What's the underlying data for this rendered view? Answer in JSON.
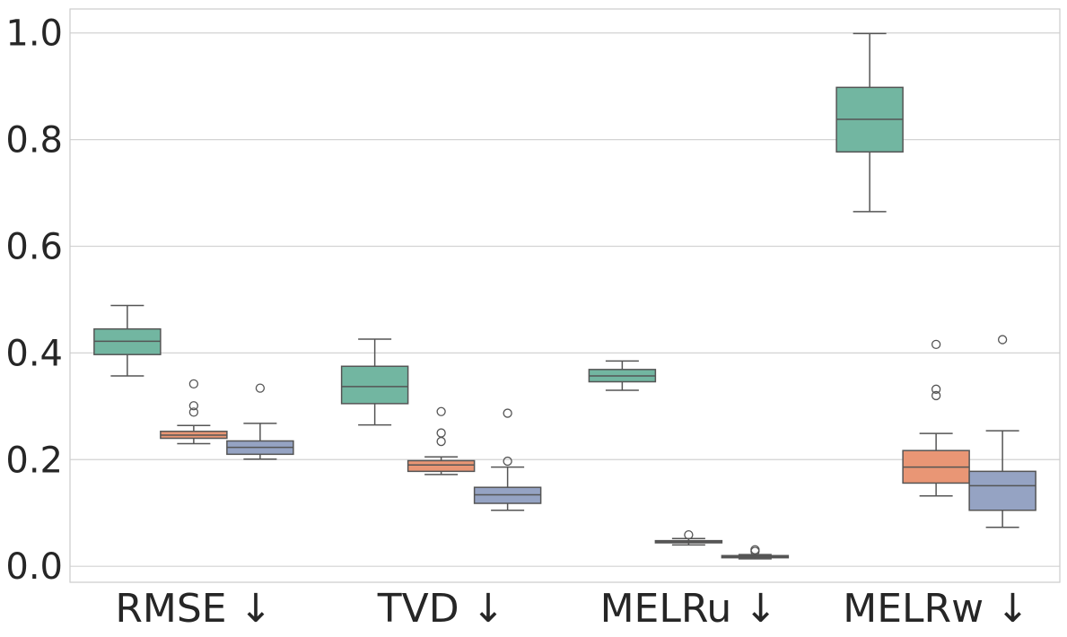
{
  "chart_data": {
    "type": "box",
    "categories": [
      "RMSE ↓",
      "TVD ↓",
      "MELRu ↓",
      "MELRw ↓"
    ],
    "ylim": [
      -0.03,
      1.045
    ],
    "yticks": [
      0.0,
      0.2,
      0.4,
      0.6,
      0.8,
      1.0
    ],
    "ytick_labels": [
      "0.0",
      "0.2",
      "0.4",
      "0.6",
      "0.8",
      "1.0"
    ],
    "grid": true,
    "legend": "none",
    "colors": [
      "#72b6a1",
      "#e99675",
      "#95a3c3"
    ],
    "series": [
      {
        "boxes": [
          {
            "q1": 0.397,
            "median": 0.422,
            "q3": 0.445,
            "whislo": 0.357,
            "whishi": 0.489,
            "fliers": []
          },
          {
            "q1": 0.305,
            "median": 0.337,
            "q3": 0.375,
            "whislo": 0.265,
            "whishi": 0.426,
            "fliers": []
          },
          {
            "q1": 0.346,
            "median": 0.357,
            "q3": 0.369,
            "whislo": 0.33,
            "whishi": 0.385,
            "fliers": []
          },
          {
            "q1": 0.777,
            "median": 0.838,
            "q3": 0.898,
            "whislo": 0.665,
            "whishi": 0.999,
            "fliers": []
          }
        ]
      },
      {
        "boxes": [
          {
            "q1": 0.24,
            "median": 0.246,
            "q3": 0.253,
            "whislo": 0.23,
            "whishi": 0.264,
            "fliers": [
              0.289,
              0.301,
              0.342
            ]
          },
          {
            "q1": 0.178,
            "median": 0.19,
            "q3": 0.198,
            "whislo": 0.172,
            "whishi": 0.205,
            "fliers": [
              0.234,
              0.25,
              0.29
            ]
          },
          {
            "q1": 0.044,
            "median": 0.046,
            "q3": 0.048,
            "whislo": 0.04,
            "whishi": 0.052,
            "fliers": [
              0.059
            ]
          },
          {
            "q1": 0.156,
            "median": 0.186,
            "q3": 0.217,
            "whislo": 0.132,
            "whishi": 0.249,
            "fliers": [
              0.32,
              0.332,
              0.416
            ]
          }
        ]
      },
      {
        "boxes": [
          {
            "q1": 0.21,
            "median": 0.223,
            "q3": 0.235,
            "whislo": 0.201,
            "whishi": 0.268,
            "fliers": [
              0.334
            ]
          },
          {
            "q1": 0.118,
            "median": 0.134,
            "q3": 0.148,
            "whislo": 0.105,
            "whishi": 0.186,
            "fliers": [
              0.197,
              0.287
            ]
          },
          {
            "q1": 0.016,
            "median": 0.018,
            "q3": 0.02,
            "whislo": 0.014,
            "whishi": 0.022,
            "fliers": [
              0.028,
              0.031
            ]
          },
          {
            "q1": 0.105,
            "median": 0.151,
            "q3": 0.178,
            "whislo": 0.073,
            "whishi": 0.254,
            "fliers": [
              0.425
            ]
          }
        ]
      }
    ]
  }
}
